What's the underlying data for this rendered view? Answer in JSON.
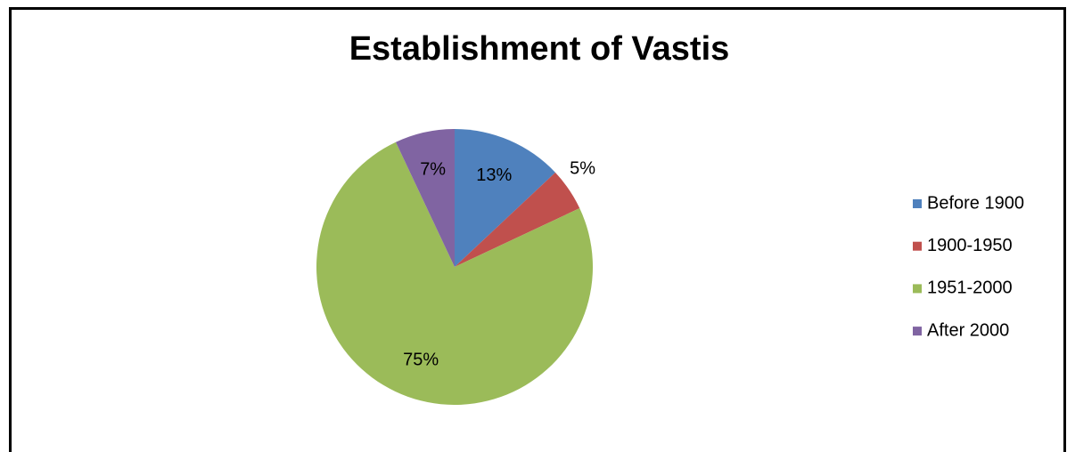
{
  "chart_data": {
    "type": "pie",
    "title": "Establishment of Vastis",
    "categories": [
      "Before 1900",
      "1900-1950",
      "1951-2000",
      "After 2000"
    ],
    "values": [
      13,
      5,
      75,
      7
    ],
    "value_labels": [
      "13%",
      "5%",
      "75%",
      "7%"
    ],
    "colors": [
      "#4f81bd",
      "#c0504d",
      "#9bbb59",
      "#8064a2"
    ],
    "legend": "right"
  }
}
